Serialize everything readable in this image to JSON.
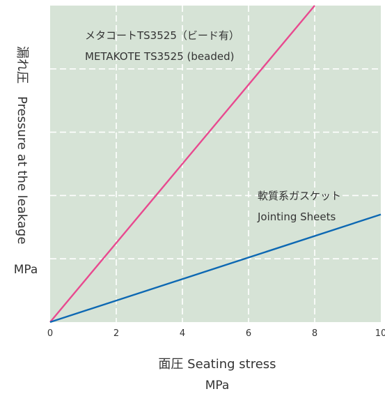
{
  "chart_data": {
    "type": "line",
    "xlabel": "面圧 Seating stress",
    "xunit": "MPa",
    "ylabel_jp": "漏れ圧",
    "ylabel_en": "Pressure at the leakage",
    "yunit": "MPa",
    "xlim": [
      0,
      10
    ],
    "xticks": [
      "0",
      "2",
      "4",
      "6",
      "8",
      "10"
    ],
    "ylim": [
      0,
      5
    ],
    "grid": true,
    "colors": {
      "plot_background": "#d6e3d6",
      "grid": "#ffffff"
    },
    "series": [
      {
        "name_jp": "メタコートTS3525（ビード有）",
        "name_en": "METAKOTE TS3525 (beaded)",
        "color": "#e8498f",
        "x": [
          0,
          8
        ],
        "y": [
          0,
          5
        ]
      },
      {
        "name_jp": "軟質系ガスケット",
        "name_en": "Jointing Sheets",
        "color": "#0d68b3",
        "x": [
          0,
          10
        ],
        "y": [
          0,
          1.7
        ]
      }
    ]
  }
}
